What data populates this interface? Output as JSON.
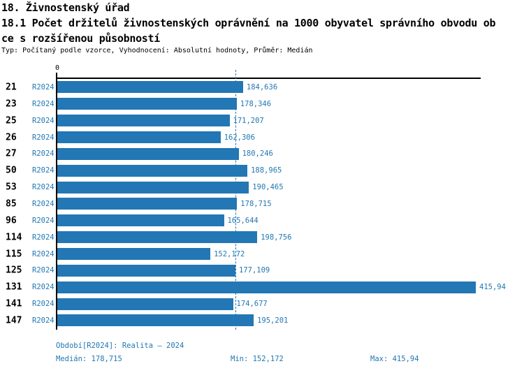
{
  "header": {
    "title_line1": "18. Živnostenský úřad",
    "title_line2": "18.1 Počet držitelů živnostenských oprávnění na 1000 obyvatel správního obvodu ob",
    "title_line3": "ce s rozšířenou působností",
    "meta": "Typ: Počítaný podle vzorce, Vyhodnocení: Absolutní hodnoty, Průměr: Medián"
  },
  "axis": {
    "zero_label": "0"
  },
  "chart_data": {
    "type": "bar",
    "orientation": "horizontal",
    "title": "18.1 Počet držitelů živnostenských oprávnění na 1000 obyvatel správního obvodu obce s rozšířenou působností",
    "categories": [
      "21",
      "23",
      "25",
      "26",
      "27",
      "50",
      "53",
      "85",
      "96",
      "114",
      "115",
      "125",
      "131",
      "141",
      "147"
    ],
    "series_label": "R2024",
    "values": [
      184.636,
      178.346,
      171.207,
      162.306,
      180.246,
      188.965,
      190.465,
      178.715,
      165.644,
      198.756,
      152.172,
      177.109,
      415.94,
      174.677,
      195.201
    ],
    "value_labels": [
      "184,636",
      "178,346",
      "171,207",
      "162,306",
      "180,246",
      "188,965",
      "190,465",
      "178,715",
      "165,644",
      "198,756",
      "152,172",
      "177,109",
      "415,94",
      "174,677",
      "195,201"
    ],
    "xlim": [
      0,
      420
    ],
    "median_line": 178.715,
    "grid": "median-dashed-line-only",
    "legend_position": "none"
  },
  "footer": {
    "period": "Období[R2024]: Realita – 2024",
    "median": "Medián: 178,715",
    "min": "Min: 152,172",
    "max": "Max: 415,94"
  },
  "colors": {
    "bar_blue": "#2277B4",
    "text_blue": "#2277B4",
    "axis_black": "#000000",
    "background": "#FFFFFF"
  }
}
